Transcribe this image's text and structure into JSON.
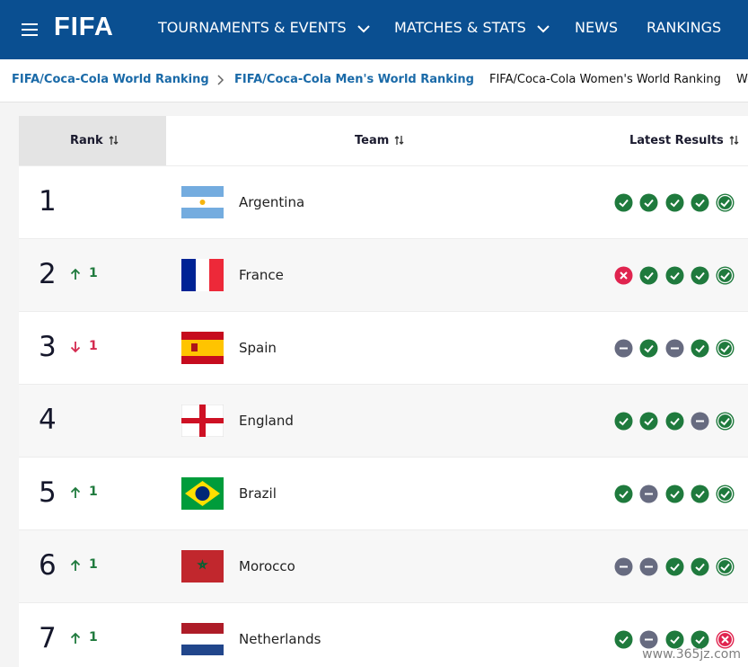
{
  "header": {
    "logo": "FIFA",
    "nav": [
      "TOURNAMENTS & EVENTS",
      "MATCHES & STATS",
      "NEWS",
      "RANKINGS"
    ]
  },
  "breadcrumbs": [
    "FIFA/Coca-Cola World Ranking",
    "FIFA/Coca-Cola Men's World Ranking",
    "FIFA/Coca-Cola Women's World Ranking",
    "World Ranking U"
  ],
  "table": {
    "columns": [
      "Rank",
      "Team",
      "Latest Results"
    ],
    "rows": [
      {
        "rank": 1,
        "change": null,
        "team": "Argentina",
        "results": [
          "win",
          "win",
          "win",
          "win",
          "win"
        ]
      },
      {
        "rank": 2,
        "change": {
          "direction": "up",
          "value": 1
        },
        "team": "France",
        "results": [
          "loss",
          "win",
          "win",
          "win",
          "win"
        ]
      },
      {
        "rank": 3,
        "change": {
          "direction": "down",
          "value": 1
        },
        "team": "Spain",
        "results": [
          "draw",
          "win",
          "draw",
          "win",
          "win"
        ]
      },
      {
        "rank": 4,
        "change": null,
        "team": "England",
        "results": [
          "win",
          "win",
          "win",
          "draw",
          "win"
        ]
      },
      {
        "rank": 5,
        "change": {
          "direction": "up",
          "value": 1
        },
        "team": "Brazil",
        "results": [
          "win",
          "draw",
          "win",
          "win",
          "win"
        ]
      },
      {
        "rank": 6,
        "change": {
          "direction": "up",
          "value": 1
        },
        "team": "Morocco",
        "results": [
          "draw",
          "draw",
          "win",
          "win",
          "win"
        ]
      },
      {
        "rank": 7,
        "change": {
          "direction": "up",
          "value": 1
        },
        "team": "Netherlands",
        "results": [
          "win",
          "draw",
          "win",
          "win",
          "loss"
        ]
      }
    ]
  },
  "watermark": "www.365jz.com"
}
